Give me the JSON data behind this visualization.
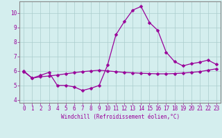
{
  "x": [
    0,
    1,
    2,
    3,
    4,
    5,
    6,
    7,
    8,
    9,
    10,
    11,
    12,
    13,
    14,
    15,
    16,
    17,
    18,
    19,
    20,
    21,
    22,
    23
  ],
  "line_upper": [
    6.0,
    5.5,
    5.7,
    5.9,
    5.0,
    5.0,
    4.9,
    4.65,
    4.8,
    5.0,
    6.4,
    8.5,
    9.4,
    10.2,
    10.45,
    9.35,
    8.8,
    7.3,
    6.65,
    6.35,
    6.5,
    6.6,
    6.75,
    6.45
  ],
  "line_lower": [
    5.95,
    5.5,
    5.6,
    5.65,
    5.72,
    5.8,
    5.88,
    5.95,
    6.0,
    6.05,
    6.0,
    5.95,
    5.9,
    5.87,
    5.84,
    5.82,
    5.8,
    5.8,
    5.82,
    5.85,
    5.9,
    5.95,
    6.05,
    6.15
  ],
  "bg_color": "#d4eeee",
  "grid_color": "#aacccc",
  "line_color": "#990099",
  "marker_size": 2.5,
  "xlabel": "Windchill (Refroidissement éolien,°C)",
  "ylabel_ticks": [
    4,
    5,
    6,
    7,
    8,
    9,
    10
  ],
  "xlim": [
    -0.5,
    23.5
  ],
  "ylim": [
    3.8,
    10.8
  ],
  "xticks": [
    0,
    1,
    2,
    3,
    4,
    5,
    6,
    7,
    8,
    9,
    10,
    11,
    12,
    13,
    14,
    15,
    16,
    17,
    18,
    19,
    20,
    21,
    22,
    23
  ],
  "xlabel_fontsize": 5.5,
  "tick_fontsize": 5.5
}
